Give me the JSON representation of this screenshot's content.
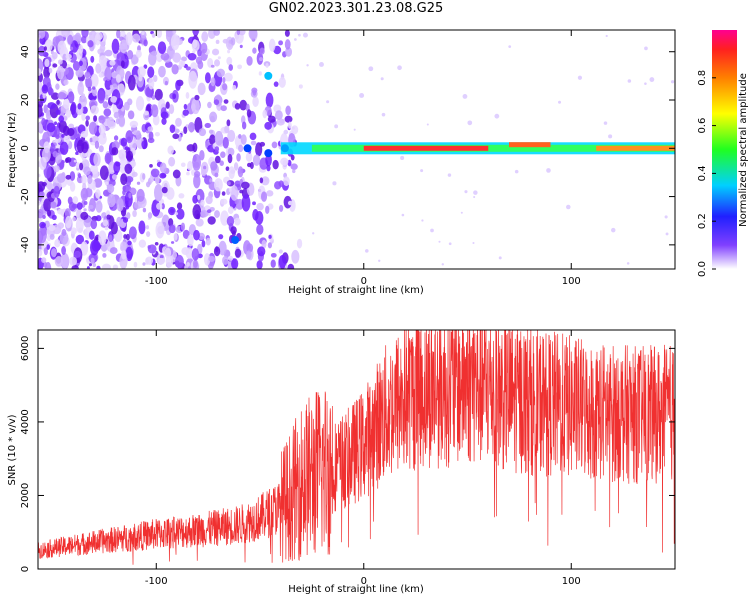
{
  "title": "GN02.2023.301.23.08.G25",
  "chart_data": [
    {
      "type": "heatmap",
      "xlabel": "Height of straight line (km)",
      "ylabel": "Frequency (Hz)",
      "xlim": [
        -157,
        150
      ],
      "ylim": [
        -50,
        49
      ],
      "xticks": [
        -100,
        0,
        100
      ],
      "yticks": [
        -40,
        -20,
        0,
        20,
        40
      ],
      "colorbar": {
        "label": "Normalized spectral amplitude",
        "range": [
          0,
          1
        ],
        "ticks": [
          0.0,
          0.2,
          0.4,
          0.6,
          0.8
        ]
      },
      "features": {
        "noise_region_x": [
          -157,
          -45
        ],
        "ridge_x": [
          -62,
          150
        ],
        "ridge_frequency_hz": 0
      }
    },
    {
      "type": "line",
      "xlabel": "Height of straight line (km)",
      "ylabel": "SNR (10 * v/v)",
      "xlim": [
        -157,
        150
      ],
      "ylim": [
        0,
        6500
      ],
      "xticks": [
        -100,
        0,
        100
      ],
      "yticks": [
        0,
        2000,
        4000,
        6000
      ],
      "series": [
        {
          "color": "#f03030",
          "x": [
            -157,
            -140,
            -120,
            -100,
            -80,
            -60,
            -50,
            -40,
            -35,
            -30,
            -20,
            -10,
            0,
            10,
            20,
            30,
            40,
            50,
            60,
            70,
            80,
            90,
            100,
            110,
            120,
            130,
            140,
            150
          ],
          "values": [
            500,
            650,
            800,
            950,
            1050,
            1200,
            1400,
            1700,
            2000,
            2400,
            2700,
            2900,
            3400,
            4200,
            4700,
            4900,
            5000,
            5100,
            4950,
            4700,
            4600,
            4500,
            4400,
            4300,
            4250,
            4200,
            4200,
            4250
          ]
        }
      ]
    }
  ]
}
